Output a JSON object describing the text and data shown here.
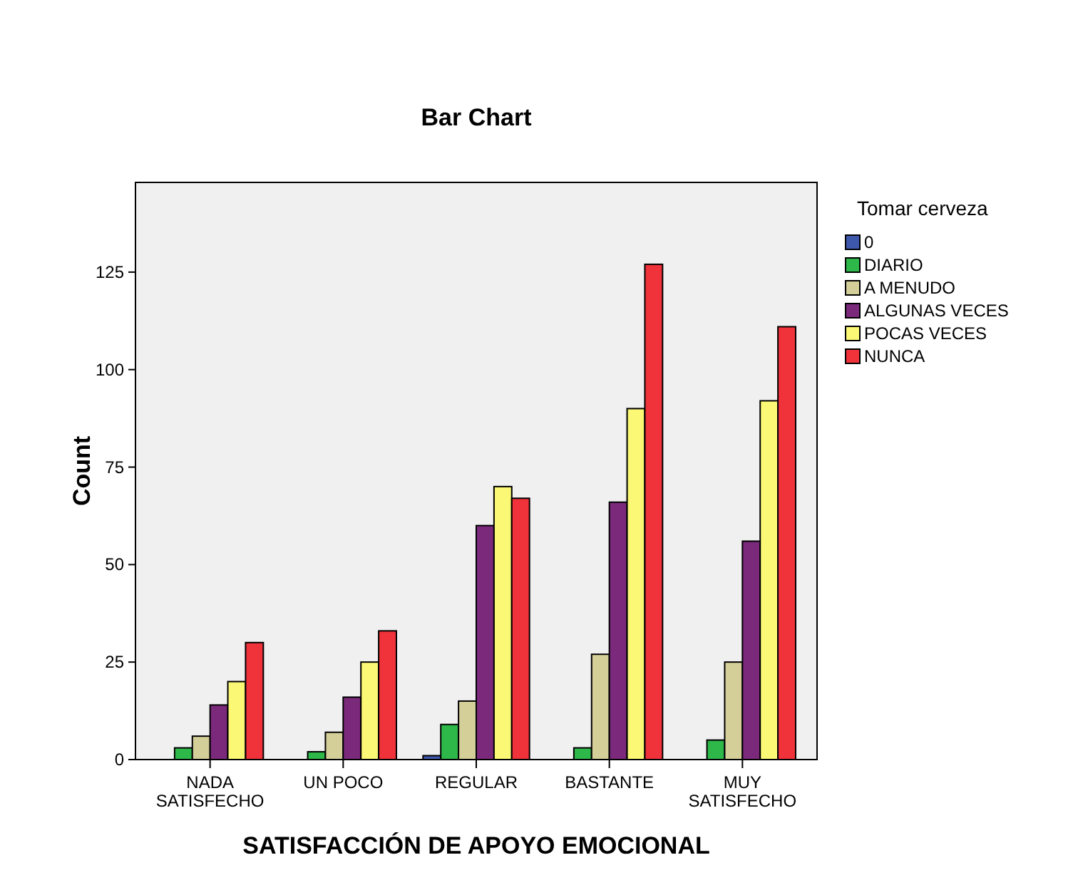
{
  "chart_data": {
    "type": "bar",
    "title": "Bar Chart",
    "xlabel": "SATISFACCIÓN DE APOYO EMOCIONAL",
    "ylabel": "Count",
    "legend_title": "Tomar cerveza",
    "legend": "right",
    "categories": [
      "NADA SATISFECHO",
      "UN POCO",
      "REGULAR",
      "BASTANTE",
      "MUY SATISFECHO"
    ],
    "series": [
      {
        "name": "0",
        "color": "#3e58ac",
        "values": [
          0,
          0,
          1,
          0,
          0
        ]
      },
      {
        "name": "DIARIO",
        "color": "#2fb84a",
        "values": [
          3,
          2,
          9,
          3,
          5
        ]
      },
      {
        "name": "A MENUDO",
        "color": "#d4ce99",
        "values": [
          6,
          7,
          15,
          27,
          25
        ]
      },
      {
        "name": "ALGUNAS VECES",
        "color": "#7b2a7b",
        "values": [
          14,
          16,
          60,
          66,
          56
        ]
      },
      {
        "name": "POCAS VECES",
        "color": "#fbf876",
        "values": [
          20,
          25,
          70,
          90,
          92
        ]
      },
      {
        "name": "NUNCA",
        "color": "#f0323a",
        "values": [
          30,
          33,
          67,
          127,
          111
        ]
      }
    ],
    "ylim": [
      0,
      148
    ],
    "yticks": [
      0,
      25,
      50,
      75,
      100,
      125
    ],
    "grid": false
  }
}
